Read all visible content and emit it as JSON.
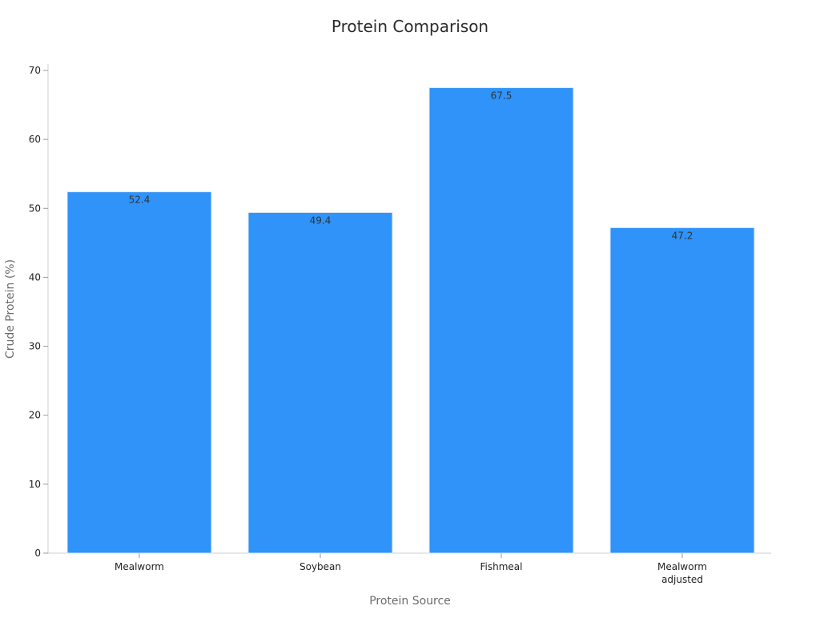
{
  "chart_data": {
    "type": "bar",
    "title": "Protein Comparison",
    "xlabel": "Protein Source",
    "ylabel": "Crude Protein (%)",
    "categories": [
      [
        "Mealworm"
      ],
      [
        "Soybean"
      ],
      [
        "Fishmeal"
      ],
      [
        "Mealworm",
        "adjusted"
      ]
    ],
    "values": [
      52.4,
      49.4,
      67.5,
      47.2
    ],
    "value_labels": [
      "52.4",
      "49.4",
      "67.5",
      "47.2"
    ],
    "ylim": [
      0,
      70
    ],
    "yticks": [
      0,
      10,
      20,
      30,
      40,
      50,
      60,
      70
    ],
    "grid": false,
    "legend": "none",
    "bar_color": "#2f93f9"
  }
}
